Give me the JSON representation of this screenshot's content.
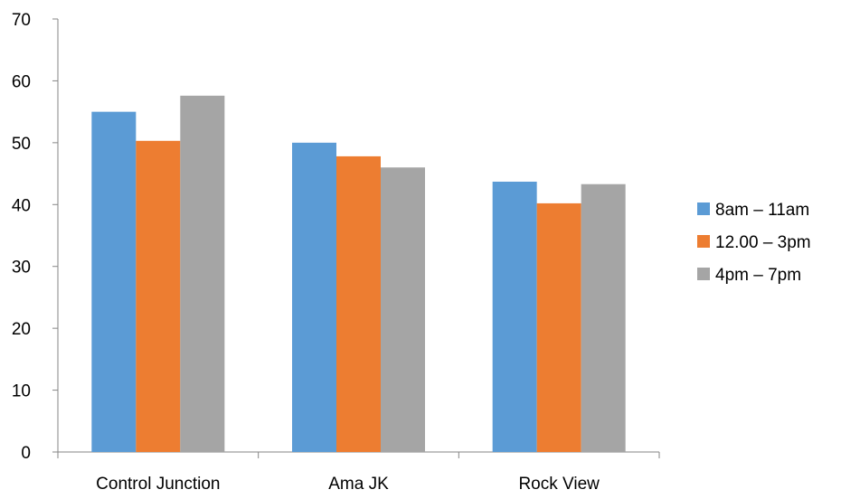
{
  "chart_data": {
    "type": "bar",
    "title": "",
    "xlabel": "",
    "ylabel": "",
    "categories": [
      "Control Junction",
      "Ama JK",
      "Rock View"
    ],
    "series": [
      {
        "name": "8am – 11am",
        "color": "#5B9BD5",
        "values": [
          55,
          50,
          43.7
        ]
      },
      {
        "name": "12.00 – 3pm",
        "color": "#ED7D31",
        "values": [
          50.3,
          47.8,
          40.2
        ]
      },
      {
        "name": "4pm – 7pm",
        "color": "#A5A5A5",
        "values": [
          57.6,
          46,
          43.3
        ]
      }
    ],
    "ylim": [
      0,
      70
    ],
    "yticks": [
      "0",
      "10",
      "20",
      "30",
      "40",
      "50",
      "60",
      "70"
    ],
    "grid": false,
    "legend_position": "right"
  }
}
